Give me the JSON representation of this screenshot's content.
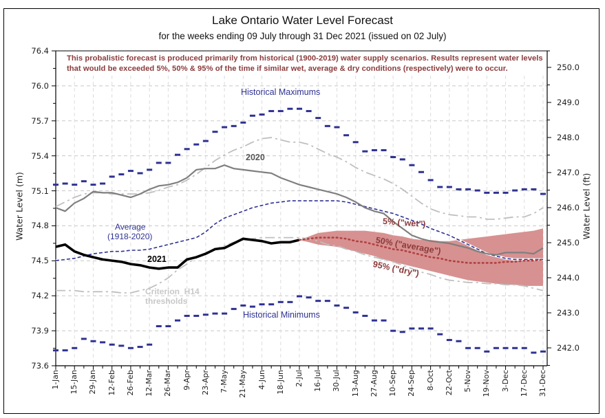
{
  "chart_data": {
    "type": "line",
    "title": "Lake Ontario Water Level Forecast",
    "subtitle": "for the weeks ending 09 July through 31 Dec 2021 (issued on 02 July)",
    "note": "This probalistic forecast is produced primarily from historical (1900-2019) water supply scenarios.   Results represent water levels that would be exceeded 5%, 50% & 95% of the time if similar wet, average & dry conditions (respectively) were to occur.",
    "ylabel": "Water Level (m)",
    "ylabel_right": "Water Level (ft)",
    "ylim": [
      73.6,
      76.4
    ],
    "ylim_right": [
      241.5,
      250.7
    ],
    "yticks_left": [
      "76.4",
      "76.0",
      "75.7",
      "75.4",
      "75.1",
      "74.8",
      "74.5",
      "74.2",
      "73.9",
      "73.6"
    ],
    "yticks_right": [
      "250.0",
      "249.0",
      "248.0",
      "247.0",
      "246.0",
      "245.0",
      "244.0",
      "243.0",
      "242.0"
    ],
    "x_categories": [
      "1-Jan",
      "15-Jan",
      "29-Jan",
      "12-Feb",
      "26-Feb",
      "12-Mar",
      "26-Mar",
      "9-Apr",
      "23-Apr",
      "7-May",
      "21-May",
      "4-Jun",
      "18-Jun",
      "2-Jul",
      "16-Jul",
      "30-Jul",
      "13-Aug",
      "27-Aug",
      "10-Sep",
      "24-Sep",
      "8-Oct",
      "22-Oct",
      "5-Nov",
      "19-Nov",
      "3-Dec",
      "17-Dec",
      "31-Dec"
    ],
    "x_unit": "week (0 = 1-Jan, 52 = 31-Dec)",
    "grid": true,
    "series": [
      {
        "name": "Historical Maximums",
        "style": "dash-markers",
        "color": "#2e3192",
        "start_week": 0,
        "values": [
          75.18,
          75.19,
          75.18,
          75.21,
          75.18,
          75.19,
          75.25,
          75.27,
          75.3,
          75.28,
          75.31,
          75.37,
          75.37,
          75.44,
          75.49,
          75.53,
          75.56,
          75.64,
          75.68,
          75.69,
          75.72,
          75.78,
          75.79,
          75.82,
          75.82,
          75.84,
          75.84,
          75.82,
          75.76,
          75.69,
          75.68,
          75.61,
          75.55,
          75.47,
          75.48,
          75.48,
          75.42,
          75.4,
          75.35,
          75.29,
          75.22,
          75.16,
          75.16,
          75.14,
          75.14,
          75.13,
          75.11,
          75.11,
          75.11,
          75.13,
          75.14,
          75.14,
          75.1
        ]
      },
      {
        "name": "Historical Minimums",
        "style": "dash-markers",
        "color": "#2e3192",
        "start_week": 0,
        "values": [
          73.74,
          73.74,
          73.76,
          73.84,
          73.82,
          73.81,
          73.79,
          73.78,
          73.76,
          73.77,
          73.79,
          73.95,
          73.95,
          74.0,
          74.04,
          74.04,
          74.05,
          74.06,
          74.06,
          74.1,
          74.13,
          74.12,
          74.14,
          74.14,
          74.16,
          74.16,
          74.21,
          74.2,
          74.17,
          74.17,
          74.13,
          74.11,
          74.07,
          74.04,
          74.0,
          74.0,
          73.91,
          73.9,
          73.93,
          73.93,
          73.93,
          73.88,
          73.83,
          73.82,
          73.76,
          73.76,
          73.73,
          73.76,
          73.76,
          73.76,
          73.76,
          73.72,
          73.73
        ]
      },
      {
        "name": "Average (1918-2020)",
        "style": "dashed",
        "color": "#2e3192",
        "start_week": 0,
        "values": [
          74.52,
          74.53,
          74.54,
          74.56,
          74.58,
          74.59,
          74.6,
          74.6,
          74.61,
          74.61,
          74.62,
          74.64,
          74.66,
          74.68,
          74.7,
          74.72,
          74.77,
          74.84,
          74.89,
          74.92,
          74.95,
          74.98,
          75.0,
          75.02,
          75.03,
          75.04,
          75.04,
          75.04,
          75.04,
          75.04,
          75.04,
          75.03,
          75.01,
          74.99,
          74.97,
          74.95,
          74.93,
          74.9,
          74.87,
          74.84,
          74.8,
          74.77,
          74.74,
          74.7,
          74.66,
          74.62,
          74.58,
          74.56,
          74.54,
          74.53,
          74.53,
          74.53,
          74.53
        ]
      },
      {
        "name": "2020",
        "style": "solid",
        "color": "#7f7f7f",
        "start_week": 0,
        "values": [
          74.98,
          74.95,
          75.02,
          75.06,
          75.12,
          75.11,
          75.11,
          75.09,
          75.07,
          75.1,
          75.14,
          75.17,
          75.18,
          75.2,
          75.24,
          75.31,
          75.32,
          75.32,
          75.35,
          75.32,
          75.31,
          75.3,
          75.29,
          75.28,
          75.24,
          75.21,
          75.18,
          75.16,
          75.14,
          75.12,
          75.1,
          75.07,
          75.03,
          74.98,
          74.95,
          74.93,
          74.86,
          74.8,
          74.74,
          74.71,
          74.69,
          74.68,
          74.67,
          74.65,
          74.63,
          74.6,
          74.58,
          74.57,
          74.59,
          74.59,
          74.59,
          74.58,
          74.63
        ]
      },
      {
        "name": "2021",
        "style": "solid-bold",
        "color": "#000000",
        "start_week": 0,
        "values": [
          74.64,
          74.66,
          74.6,
          74.57,
          74.55,
          74.53,
          74.52,
          74.51,
          74.49,
          74.48,
          74.46,
          74.45,
          74.46,
          74.46,
          74.53,
          74.55,
          74.58,
          74.62,
          74.63,
          74.67,
          74.71,
          74.7,
          74.69,
          74.67,
          74.68,
          74.68,
          74.7
        ]
      },
      {
        "name": "Criterion H14 thresholds",
        "style": "dash-dot",
        "color": "#bfbfbf",
        "start_week": 0,
        "values": [
          74.99,
          75.03,
          75.07,
          75.1,
          75.11,
          75.11,
          75.1,
          75.1,
          75.1,
          75.1,
          75.11,
          75.13,
          75.16,
          75.18,
          75.22,
          75.27,
          75.33,
          75.39,
          75.44,
          75.48,
          75.51,
          75.55,
          75.58,
          75.59,
          75.57,
          75.55,
          75.55,
          75.53,
          75.49,
          75.45,
          75.42,
          75.38,
          75.33,
          75.29,
          75.26,
          75.23,
          75.19,
          75.14,
          75.08,
          75.02,
          74.97,
          74.94,
          74.92,
          74.91,
          74.9,
          74.9,
          74.88,
          74.88,
          74.89,
          74.9,
          74.9,
          74.93,
          74.98
        ]
      },
      {
        "name": "Criterion H14 thresholds (lower)",
        "style": "dash-dot",
        "color": "#bfbfbf",
        "start_week": 0,
        "values": [
          74.26,
          74.26,
          74.26,
          74.25,
          74.25,
          74.25,
          74.25,
          74.24,
          74.24,
          74.26,
          74.28,
          74.32,
          74.37,
          74.44,
          74.49,
          74.55,
          74.59,
          74.62,
          74.65,
          74.68,
          74.7,
          74.71,
          74.72,
          74.72,
          74.72,
          74.72,
          74.72,
          74.71,
          74.69,
          74.66,
          74.65,
          74.62,
          74.6,
          74.57,
          74.55,
          74.53,
          74.51,
          74.48,
          74.45,
          74.42,
          74.4,
          74.37,
          74.35,
          74.34,
          74.33,
          74.33,
          74.32,
          74.32,
          74.31,
          74.31,
          74.3,
          74.28,
          74.26
        ]
      },
      {
        "name": "5% (\"wet\")",
        "style": "band-upper",
        "color": "#d58b8b",
        "start_week": 26,
        "values": [
          74.7,
          74.73,
          74.76,
          74.77,
          74.78,
          74.78,
          74.78,
          74.78,
          74.77,
          74.76,
          74.74,
          74.73,
          74.71,
          74.7,
          74.7,
          74.69,
          74.69,
          74.7,
          74.71,
          74.72,
          74.73,
          74.74,
          74.75,
          74.76,
          74.77,
          74.78,
          74.8
        ]
      },
      {
        "name": "50% (\"average\")",
        "style": "dotted",
        "color": "#b04040",
        "start_week": 26,
        "values": [
          74.7,
          74.71,
          74.72,
          74.72,
          74.72,
          74.71,
          74.69,
          74.68,
          74.66,
          74.64,
          74.62,
          74.61,
          74.59,
          74.57,
          74.55,
          74.54,
          74.52,
          74.51,
          74.5,
          74.5,
          74.5,
          74.5,
          74.51,
          74.51,
          74.52,
          74.52,
          74.53
        ]
      },
      {
        "name": "95% (\"dry\")",
        "style": "band-lower",
        "color": "#d58b8b",
        "start_week": 26,
        "values": [
          74.7,
          74.68,
          74.66,
          74.65,
          74.64,
          74.62,
          74.6,
          74.58,
          74.56,
          74.53,
          74.51,
          74.49,
          74.47,
          74.45,
          74.43,
          74.41,
          74.39,
          74.37,
          74.35,
          74.34,
          74.33,
          74.32,
          74.31,
          74.31,
          74.3,
          74.3,
          74.3
        ]
      }
    ],
    "annotations": [
      {
        "text": "Historical Maximums",
        "color": "#2e3192"
      },
      {
        "text": "2020",
        "color": "#595959"
      },
      {
        "text": "Average",
        "color": "#2e3192"
      },
      {
        "text": "(1918-2020)",
        "color": "#2e3192"
      },
      {
        "text": "2021",
        "color": "#000000"
      },
      {
        "text": "Criterion  H14",
        "color": "#bfbfbf"
      },
      {
        "text": "thresholds",
        "color": "#bfbfbf"
      },
      {
        "text": "Historical Minimums",
        "color": "#2e3192"
      },
      {
        "text": "5% (\"wet\")",
        "color": "#8b3a3a"
      },
      {
        "text": "50% (\"average\")",
        "color": "#8b3a3a"
      },
      {
        "text": "95% (\"dry\")",
        "color": "#8b3a3a"
      }
    ]
  }
}
